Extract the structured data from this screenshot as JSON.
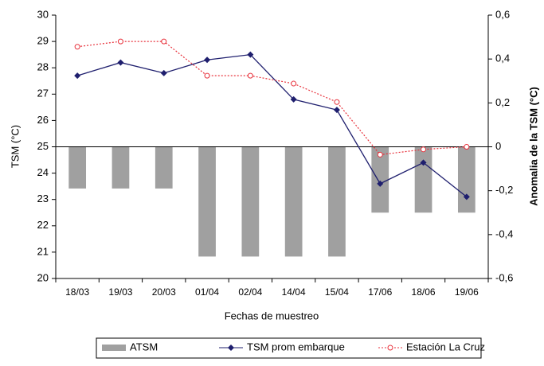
{
  "chart_data": {
    "type": "bar-line",
    "x_label": "Fechas de muestreo",
    "y_label": "TSM (°C)",
    "y2_label": "Anomalia de la TSM (°C)",
    "categories": [
      "18/03",
      "19/03",
      "20/03",
      "01/04",
      "02/04",
      "14/04",
      "15/04",
      "17/06",
      "18/06",
      "19/06"
    ],
    "ylim": [
      20,
      30
    ],
    "yticks": [
      20,
      21,
      22,
      23,
      24,
      25,
      26,
      27,
      28,
      29,
      30
    ],
    "y2lim": [
      -0.6,
      0.6
    ],
    "y2ticks": [
      {
        "value": -0.6,
        "label": "-0,6"
      },
      {
        "value": -0.4,
        "label": "-0,4"
      },
      {
        "value": -0.2,
        "label": "-0,2"
      },
      0,
      {
        "value": 0.2,
        "label": "0,2"
      },
      {
        "value": 0.4,
        "label": "0,4"
      },
      {
        "value": 0.6,
        "label": "0,6"
      }
    ],
    "series": [
      {
        "name": "ATSM",
        "type": "bar",
        "axis": "y2",
        "color": "#a0a0a0",
        "values": [
          -0.19,
          -0.19,
          -0.19,
          -0.5,
          -0.5,
          -0.5,
          -0.5,
          -0.3,
          -0.3,
          -0.3
        ]
      },
      {
        "name": "TSM prom embarque",
        "type": "line",
        "color": "#1f1f6e",
        "values": [
          27.7,
          28.2,
          27.8,
          28.3,
          28.5,
          26.8,
          26.4,
          23.6,
          24.4,
          23.1
        ]
      },
      {
        "name": "Estación La Cruz",
        "type": "line",
        "dashed": true,
        "color": "#e8323c",
        "values": [
          28.8,
          29.0,
          29.0,
          27.7,
          27.7,
          27.4,
          26.7,
          24.7,
          24.9,
          25.0
        ]
      }
    ]
  }
}
